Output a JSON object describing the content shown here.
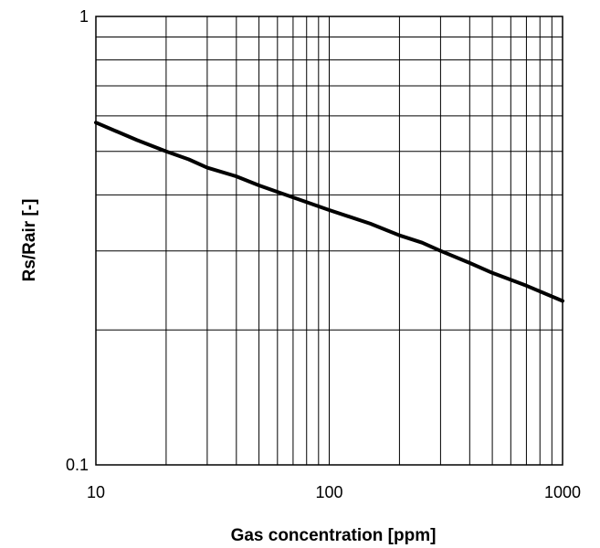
{
  "chart_data": {
    "type": "line",
    "xlabel": "Gas concentration [ppm]",
    "ylabel": "Rs/Rair [-]",
    "x_scale": "log",
    "y_scale": "log",
    "xlim": [
      10,
      1000
    ],
    "ylim": [
      0.1,
      1
    ],
    "x_tick_labels": [
      "10",
      "100",
      "1000"
    ],
    "y_tick_labels": [
      "0.1",
      "1"
    ],
    "grid": true,
    "line_color": "#000000",
    "series": [
      {
        "x": [
          10,
          15,
          20,
          25,
          30,
          40,
          50,
          70,
          100,
          150,
          200,
          250,
          300,
          400,
          500,
          700,
          1000
        ],
        "y": [
          0.58,
          0.53,
          0.5,
          0.48,
          0.46,
          0.44,
          0.42,
          0.395,
          0.37,
          0.345,
          0.325,
          0.313,
          0.3,
          0.282,
          0.268,
          0.251,
          0.232
        ]
      }
    ]
  }
}
